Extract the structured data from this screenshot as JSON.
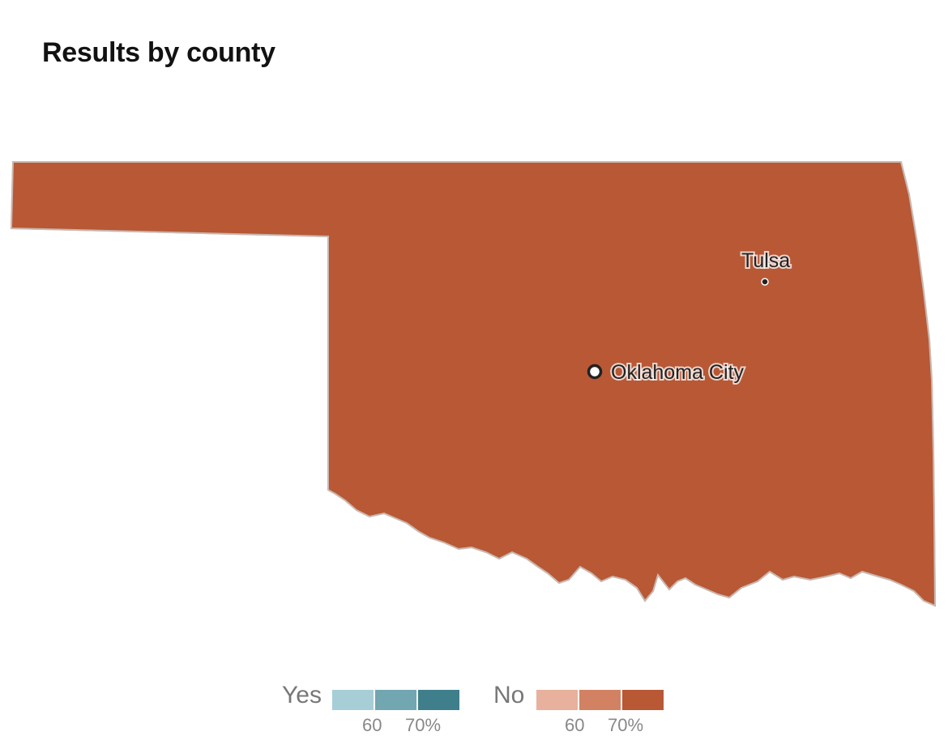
{
  "title": "Results by county",
  "cities": [
    {
      "name": "Tulsa",
      "type": "city"
    },
    {
      "name": "Oklahoma City",
      "type": "capital"
    }
  ],
  "colors": {
    "no_high": "#b85835",
    "no_mid": "#d28262",
    "no_low": "#e7b19d",
    "yes_low": "#a7ced6",
    "yes_mid": "#72a6b0",
    "yes_high": "#3f7f8b",
    "border": "#e9c3b3",
    "road": "#7e3d24"
  },
  "legend": {
    "yes": {
      "label": "Yes",
      "ticks": [
        "60",
        "70%"
      ]
    },
    "no": {
      "label": "No",
      "ticks": [
        "60",
        "70%"
      ]
    }
  }
}
